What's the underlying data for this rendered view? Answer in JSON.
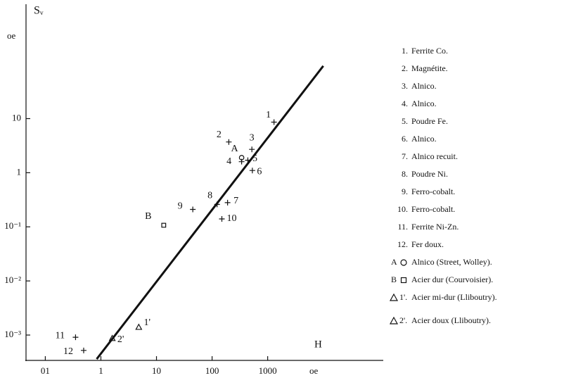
{
  "chart_data": {
    "type": "scatter",
    "y_label": "Sᵥ",
    "y_unit": "oe",
    "x_label": "H",
    "x_unit": "oe",
    "xscale": "log",
    "yscale": "log",
    "xlim": [
      0.045,
      120000
    ],
    "ylim": [
      0.00034,
      1300
    ],
    "xticks": [
      {
        "value": 0.1,
        "label": "01"
      },
      1,
      10,
      100,
      1000
    ],
    "yticks": [
      10,
      1,
      {
        "value": 0.1,
        "label": "10⁻¹"
      },
      {
        "value": 0.01,
        "label": "10⁻²"
      },
      {
        "value": 0.001,
        "label": "10⁻³"
      }
    ],
    "color": "#111111",
    "fit": {
      "x": [
        0.84,
        10000
      ],
      "y": [
        0.00036,
        94
      ]
    },
    "points": [
      {
        "label": "1",
        "x": 1300,
        "y": 8.6,
        "marker": "plus"
      },
      {
        "label": "2",
        "x": 200,
        "y": 3.7,
        "marker": "plus"
      },
      {
        "label": "3",
        "x": 520,
        "y": 2.7,
        "marker": "plus"
      },
      {
        "label": "4",
        "x": 340,
        "y": 1.6,
        "marker": "plus"
      },
      {
        "label": "5",
        "x": 440,
        "y": 1.7,
        "marker": "plus"
      },
      {
        "label": "6",
        "x": 530,
        "y": 1.1,
        "marker": "plus"
      },
      {
        "label": "7",
        "x": 190,
        "y": 0.28,
        "marker": "plus"
      },
      {
        "label": "8",
        "x": 123,
        "y": 0.26,
        "marker": "plus"
      },
      {
        "label": "9",
        "x": 45,
        "y": 0.21,
        "marker": "plus"
      },
      {
        "label": "10",
        "x": 150,
        "y": 0.14,
        "marker": "plus"
      },
      {
        "label": "11",
        "x": 0.35,
        "y": 0.00091,
        "marker": "plus"
      },
      {
        "label": "12",
        "x": 0.49,
        "y": 0.00052,
        "marker": "plus"
      },
      {
        "label": "A",
        "x": 340,
        "y": 1.9,
        "marker": "circle"
      },
      {
        "label": "B",
        "x": 13.5,
        "y": 0.107,
        "marker": "square"
      },
      {
        "label": "1'",
        "x": 4.8,
        "y": 0.0014,
        "marker": "triangle"
      },
      {
        "label": "2'",
        "x": 1.6,
        "y": 0.00087,
        "marker": "triangle"
      }
    ],
    "legend": [
      {
        "key": "1.",
        "text": "Ferrite Co."
      },
      {
        "key": "2.",
        "text": "Magnétite."
      },
      {
        "key": "3.",
        "text": "Alnico."
      },
      {
        "key": "4.",
        "text": "Alnico."
      },
      {
        "key": "5.",
        "text": "Poudre Fe."
      },
      {
        "key": "6.",
        "text": "Alnico."
      },
      {
        "key": "7.",
        "text": "Alnico recuit."
      },
      {
        "key": "8.",
        "text": "Poudre Ni."
      },
      {
        "key": "9.",
        "text": "Ferro-cobalt."
      },
      {
        "key": "10.",
        "text": "Ferro-cobalt."
      },
      {
        "key": "11.",
        "text": "Ferrite Ni-Zn."
      },
      {
        "key": "12.",
        "text": "Fer doux."
      },
      {
        "key": "A",
        "marker": "circle",
        "text": "Alnico (Street, Wolley)."
      },
      {
        "key": "B",
        "marker": "square",
        "text": "Acier dur (Courvoisier)."
      },
      {
        "key": "1'.",
        "marker": "triangle",
        "text": "Acier mi-dur (Lliboutry)."
      },
      {
        "key": "2'.",
        "marker": "triangle",
        "text": "Acier doux (Lliboutry)."
      }
    ]
  }
}
